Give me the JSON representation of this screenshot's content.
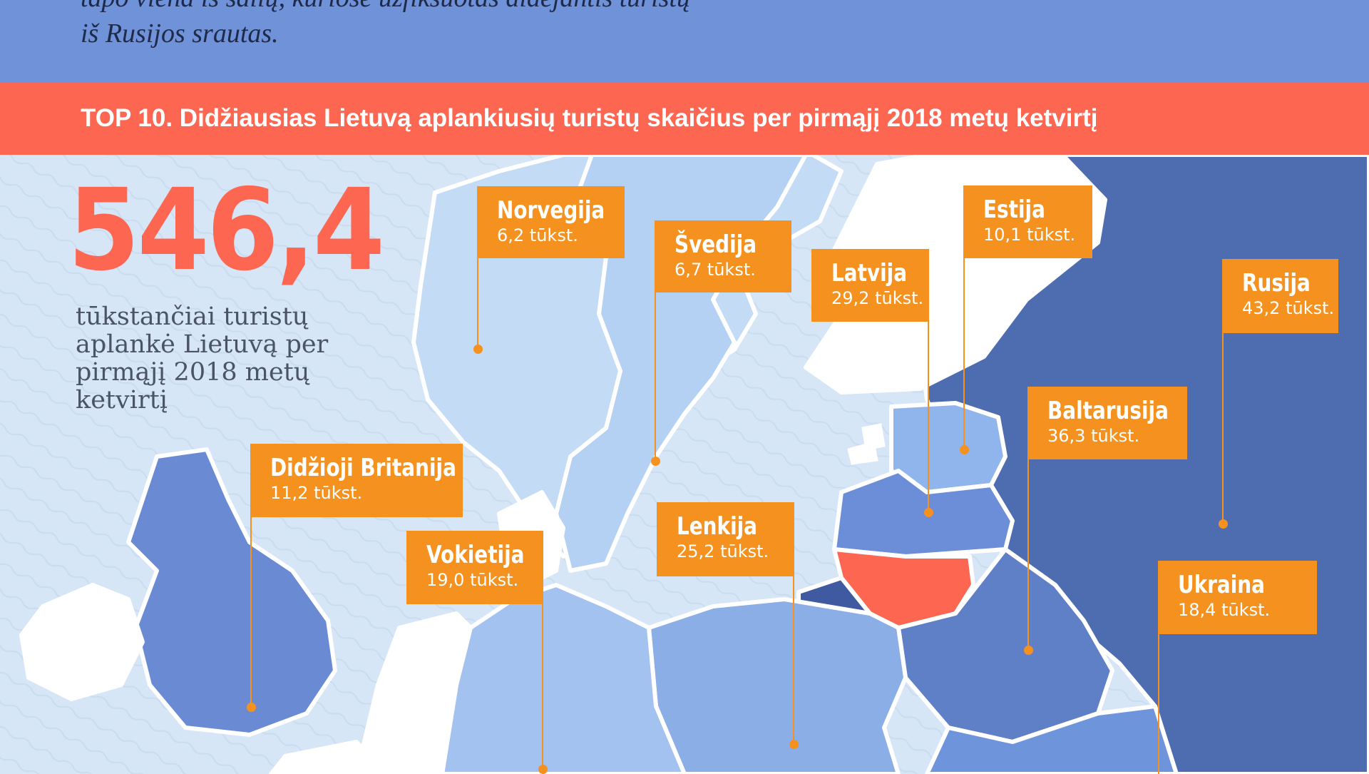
{
  "intro": {
    "line1": "tapo viena iš šalių, kuriose užfiksuotas didėjantis turistų",
    "line2": "iš Rusijos srautas."
  },
  "banner": {
    "title": "TOP 10. Didžiausias Lietuvą aplankiusių turistų skaičius per pirmąjį 2018 metų ketvirtį"
  },
  "headline": {
    "total": "546,4",
    "caption": "tūkstančiai turistų aplankė Lietuvą per pirmąjį 2018 metų ketvirtį"
  },
  "countries": [
    {
      "id": "norvegija",
      "name": "Norvegija",
      "value": 6.2,
      "value_label": "6,2 tūkst."
    },
    {
      "id": "svedija",
      "name": "Švedija",
      "value": 6.7,
      "value_label": "6,7 tūkst."
    },
    {
      "id": "latvija",
      "name": "Latvija",
      "value": 29.2,
      "value_label": "29,2 tūkst."
    },
    {
      "id": "estija",
      "name": "Estija",
      "value": 10.1,
      "value_label": "10,1 tūkst."
    },
    {
      "id": "rusija",
      "name": "Rusija",
      "value": 43.2,
      "value_label": "43,2 tūkst."
    },
    {
      "id": "baltarusija",
      "name": "Baltarusija",
      "value": 36.3,
      "value_label": "36,3 tūkst."
    },
    {
      "id": "didzioji-britanija",
      "name": "Didžioji Britanija",
      "value": 11.2,
      "value_label": "11,2 tūkst."
    },
    {
      "id": "vokietija",
      "name": "Vokietija",
      "value": 19.0,
      "value_label": "19,0 tūkst."
    },
    {
      "id": "lenkija",
      "name": "Lenkija",
      "value": 25.2,
      "value_label": "25,2 tūkst."
    },
    {
      "id": "ukraina",
      "name": "Ukraina",
      "value": 18.4,
      "value_label": "18,4 tūkst."
    }
  ],
  "colors": {
    "intro_bg": "#6f92d8",
    "banner_bg": "#fd6650",
    "label_bg": "#f5921f",
    "highlight": "#fd6650",
    "sea": "#d6e6f6"
  }
}
